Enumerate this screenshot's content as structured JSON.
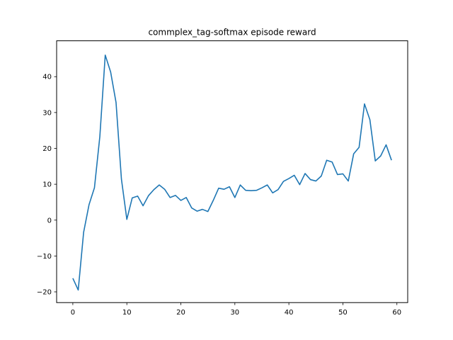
{
  "chart_data": {
    "type": "line",
    "title": "commplex_tag-softmax episode reward",
    "xlabel": "",
    "ylabel": "",
    "xlim": [
      -3,
      62
    ],
    "ylim": [
      -23.0,
      50.0
    ],
    "xticks": [
      0,
      10,
      20,
      30,
      40,
      50,
      60
    ],
    "yticks": [
      -20,
      -10,
      0,
      10,
      20,
      30,
      40
    ],
    "grid": false,
    "line_color": "#1f77b4",
    "series": [
      {
        "x": [
          0,
          1,
          2,
          3,
          4,
          5,
          6,
          7,
          8,
          9,
          10,
          11,
          12,
          13,
          14,
          15,
          16,
          17,
          18,
          19,
          20,
          21,
          22,
          23,
          24,
          25,
          26,
          27,
          28,
          29,
          30,
          31,
          32,
          33,
          34,
          35,
          36,
          37,
          38,
          39,
          40,
          41,
          42,
          43,
          44,
          45,
          46,
          47,
          48,
          49,
          50,
          51,
          52,
          53,
          54,
          55,
          56,
          57,
          58,
          59
        ],
        "values": [
          -16.2,
          -19.5,
          -3.4,
          4.3,
          9.0,
          23.3,
          46.0,
          41.3,
          32.8,
          11.4,
          0.2,
          6.2,
          6.7,
          4.0,
          6.8,
          8.5,
          9.8,
          8.6,
          6.3,
          6.9,
          5.5,
          6.3,
          3.4,
          2.5,
          3.0,
          2.4,
          5.5,
          8.9,
          8.6,
          9.3,
          6.3,
          9.8,
          8.3,
          8.2,
          8.3,
          9.0,
          9.8,
          7.6,
          8.5,
          10.8,
          11.6,
          12.5,
          9.9,
          13.0,
          11.3,
          10.9,
          12.3,
          16.7,
          16.2,
          12.7,
          12.9,
          10.9,
          18.5,
          20.3,
          32.4,
          28.0,
          16.5,
          17.9,
          21.0,
          16.7
        ]
      }
    ]
  }
}
